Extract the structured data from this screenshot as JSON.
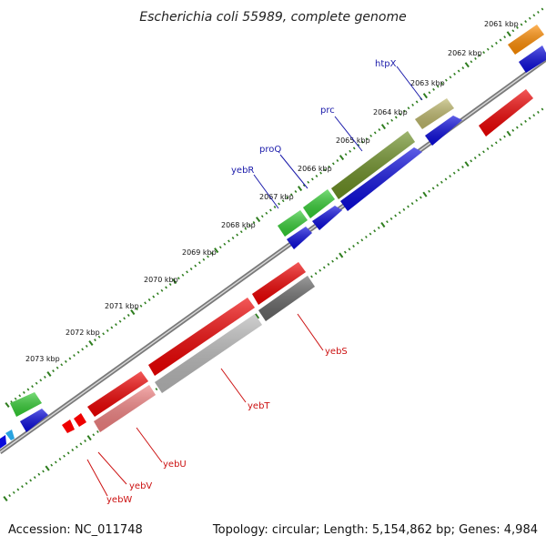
{
  "title": "Escherichia coli 55989, complete genome",
  "footer": {
    "accession": "Accession: NC_011748",
    "topology": "Topology: circular; Length: 5,154,862 bp; Genes: 4,984"
  },
  "colors": {
    "backbone": "#777777",
    "ticks": "#2e7d1e",
    "label_blue": "#1a1aaa",
    "label_red": "#cc1111"
  },
  "tick_labels": [
    "2061 kbp",
    "2062 kbp",
    "2063 kbp",
    "2064 kbp",
    "2065 kbp",
    "2066 kbp",
    "2067 kbp",
    "2068 kbp",
    "2069 kbp",
    "2070 kbp",
    "2071 kbp",
    "2072 kbp",
    "2073 kbp"
  ],
  "gene_labels": [
    {
      "text": "htpX",
      "strand": "plus"
    },
    {
      "text": "prc",
      "strand": "plus"
    },
    {
      "text": "proQ",
      "strand": "plus"
    },
    {
      "text": "yebR",
      "strand": "plus"
    },
    {
      "text": "yebS",
      "strand": "minus"
    },
    {
      "text": "yebT",
      "strand": "minus"
    },
    {
      "text": "yebU",
      "strand": "minus"
    },
    {
      "text": "yebV",
      "strand": "minus"
    },
    {
      "text": "yebW",
      "strand": "minus"
    }
  ]
}
